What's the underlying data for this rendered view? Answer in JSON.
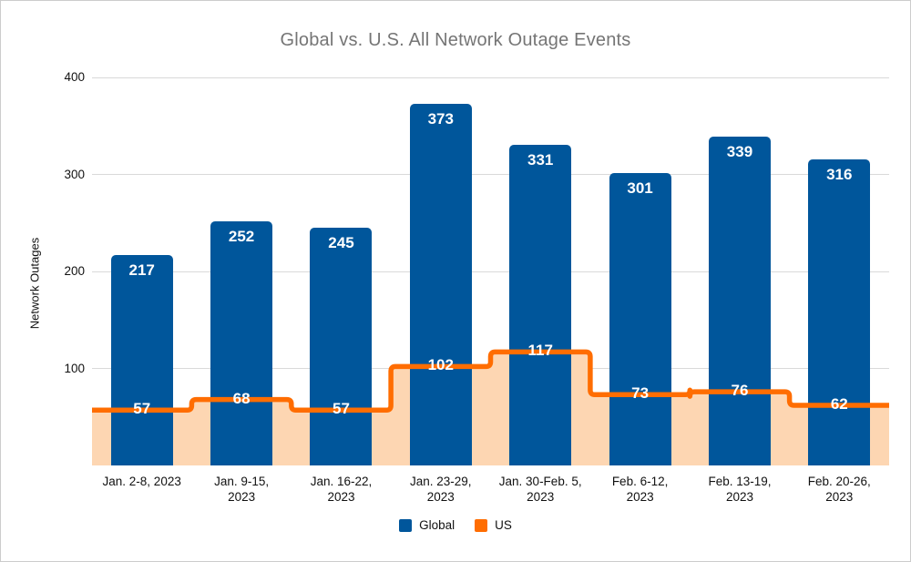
{
  "chart_data": {
    "type": "bar",
    "title": "Global vs. U.S. All Network Outage Events",
    "xlabel": "",
    "ylabel": "Network Outages",
    "categories": [
      "Jan. 2-8, 2023",
      "Jan. 9-15,\n2023",
      "Jan. 16-22,\n2023",
      "Jan. 23-29,\n2023",
      "Jan. 30-Feb. 5,\n2023",
      "Feb. 6-12,\n2023",
      "Feb. 13-19,\n2023",
      "Feb. 20-26,\n2023"
    ],
    "series": [
      {
        "name": "Global",
        "type": "bar",
        "color": "#00569b",
        "label_color": "#ffffff",
        "values": [
          217,
          252,
          245,
          373,
          331,
          301,
          339,
          316
        ]
      },
      {
        "name": "US",
        "type": "step-area",
        "line_color": "#ff6d01",
        "fill_color": "#fdd6b2",
        "label_color": "#ffffff",
        "values": [
          57,
          68,
          57,
          102,
          117,
          73,
          76,
          62
        ]
      }
    ],
    "ylim": [
      0,
      400
    ],
    "yticks": [
      100,
      200,
      300,
      400
    ],
    "grid": true,
    "legend_position": "bottom"
  },
  "colors": {
    "title_text": "#757575",
    "axis_text": "#111111",
    "gridline": "#d9d9d9",
    "background": "#ffffff",
    "border": "#cccccc"
  }
}
